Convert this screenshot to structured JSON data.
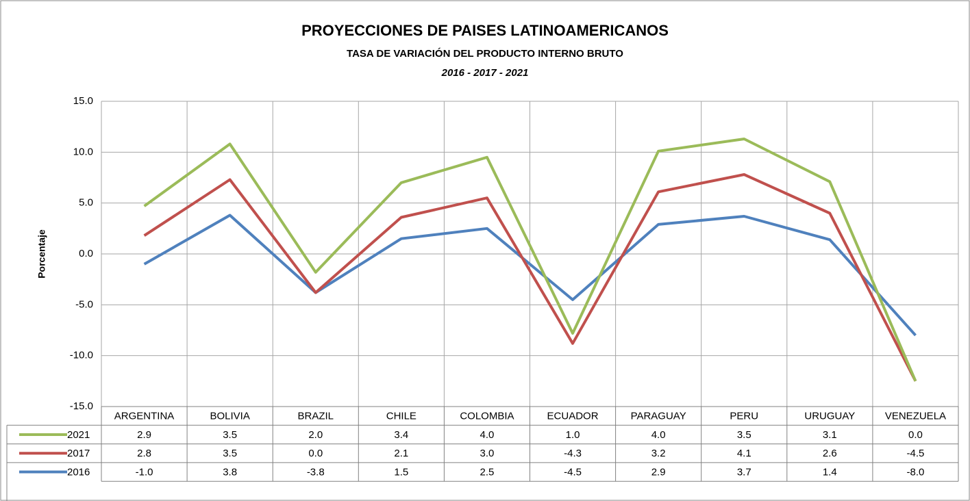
{
  "chart_data": {
    "type": "line",
    "stacked": true,
    "title": "PROYECCIONES DE PAISES LATINOAMERICANOS",
    "subtitle": "TASA DE VARIACIÓN  DEL PRODUCTO INTERNO BRUTO",
    "period": "2016 - 2017 - 2021",
    "y_label": "Porcentaje",
    "categories": [
      "ARGENTINA",
      "BOLIVIA",
      "BRAZIL",
      "CHILE",
      "COLOMBIA",
      "ECUADOR",
      "PARAGUAY",
      "PERU",
      "URUGUAY",
      "VENEZUELA"
    ],
    "series": [
      {
        "name": "2016",
        "color": "#4f81bd",
        "values": [
          -1.0,
          3.8,
          -3.8,
          1.5,
          2.5,
          -4.5,
          2.9,
          3.7,
          1.4,
          -8.0
        ],
        "value_labels": [
          "-1.0",
          "3.8",
          "-3.8",
          "1.5",
          "2.5",
          "-4.5",
          "2.9",
          "3.7",
          "1.4",
          "-8.0"
        ]
      },
      {
        "name": "2017",
        "color": "#c0504d",
        "values": [
          2.8,
          3.5,
          0.0,
          2.1,
          3.0,
          -4.3,
          3.2,
          4.1,
          2.6,
          -4.5
        ],
        "value_labels": [
          "2.8",
          "3.5",
          "0.0",
          "2.1",
          "3.0",
          "-4.3",
          "3.2",
          "4.1",
          "2.6",
          "-4.5"
        ]
      },
      {
        "name": "2021",
        "color": "#9bbb59",
        "values": [
          2.9,
          3.5,
          2.0,
          3.4,
          4.0,
          1.0,
          4.0,
          3.5,
          3.1,
          0.0
        ],
        "value_labels": [
          "2.9",
          "3.5",
          "2.0",
          "3.4",
          "4.0",
          "1.0",
          "4.0",
          "3.5",
          "3.1",
          "0.0"
        ]
      }
    ],
    "ylim": [
      -15,
      15
    ],
    "yticks": [
      {
        "value": -15,
        "label": "-15.0"
      },
      {
        "value": -10,
        "label": "-10.0"
      },
      {
        "value": -5,
        "label": "-5.0"
      },
      {
        "value": 0,
        "label": "0.0"
      },
      {
        "value": 5,
        "label": "5.0"
      },
      {
        "value": 10,
        "label": "10.0"
      },
      {
        "value": 15,
        "label": "15.0"
      }
    ],
    "grid": true,
    "data_table": true
  }
}
